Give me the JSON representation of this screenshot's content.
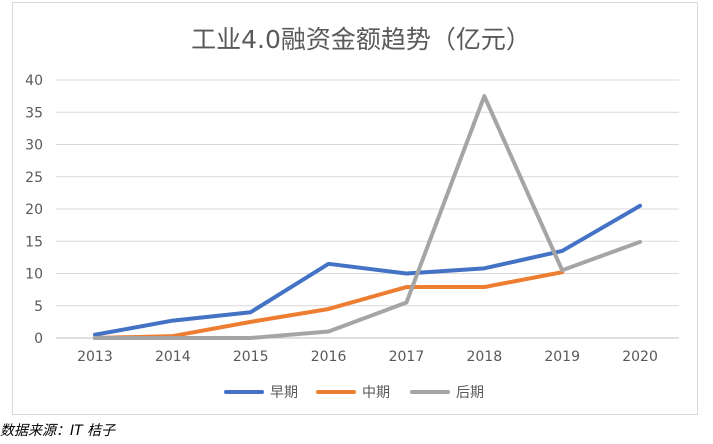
{
  "chart_data": {
    "type": "line",
    "title": "工业4.0融资金额趋势（亿元）",
    "xlabel": "",
    "ylabel": "",
    "categories": [
      "2013",
      "2014",
      "2015",
      "2016",
      "2017",
      "2018",
      "2019",
      "2020"
    ],
    "ylim": [
      0,
      40
    ],
    "yticks": [
      0,
      5,
      10,
      15,
      20,
      25,
      30,
      35,
      40
    ],
    "grid": true,
    "legend_position": "bottom",
    "series": [
      {
        "name": "早期",
        "color": "#4472c4",
        "values": [
          0.5,
          2.7,
          4.0,
          11.5,
          10.0,
          10.8,
          13.5,
          20.5
        ]
      },
      {
        "name": "中期",
        "color": "#ed7d31",
        "values": [
          0.0,
          0.3,
          2.5,
          4.5,
          7.9,
          7.9,
          10.2,
          null
        ]
      },
      {
        "name": "后期",
        "color": "#a5a5a5",
        "values": [
          0.0,
          0.0,
          0.0,
          1.0,
          5.5,
          37.5,
          10.5,
          14.9
        ]
      }
    ]
  },
  "source_note": "数据来源：IT 桔子"
}
